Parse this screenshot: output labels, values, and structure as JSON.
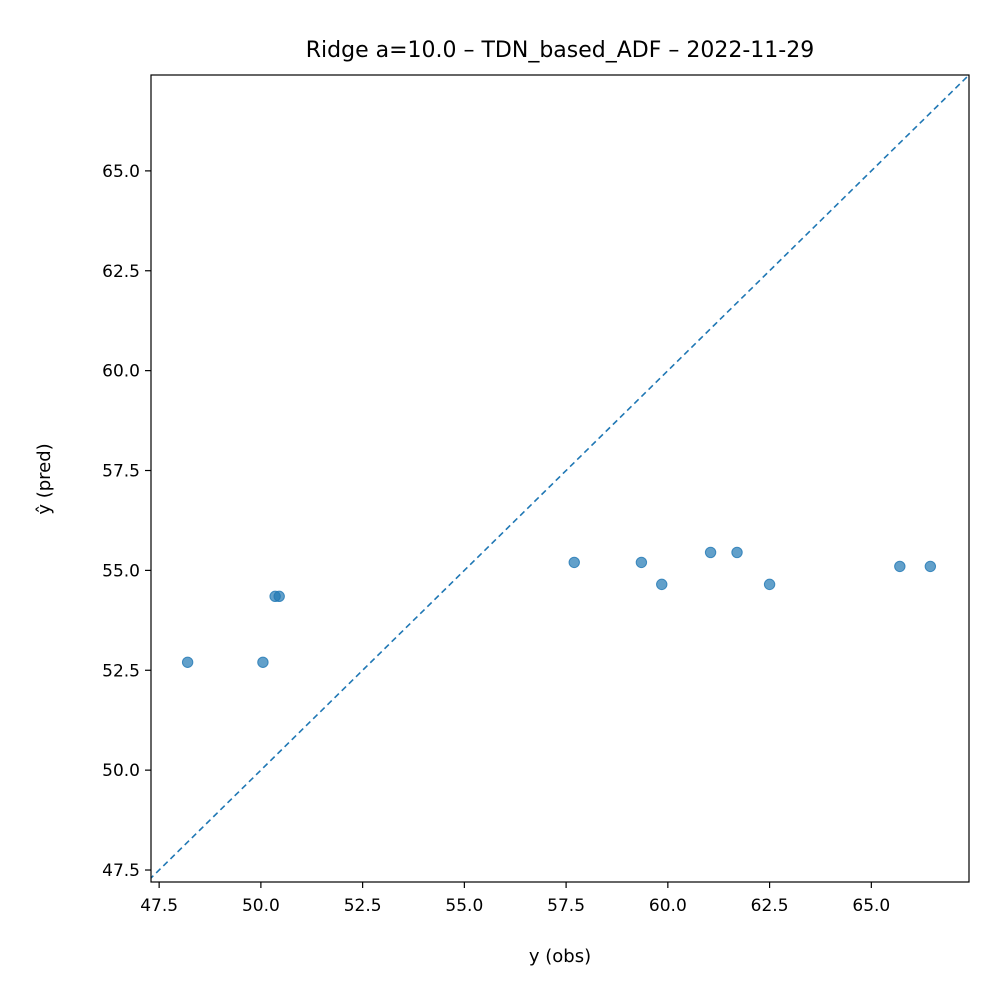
{
  "chart_data": {
    "type": "scatter",
    "title": "Ridge a=10.0 – TDN_based_ADF – 2022-11-29",
    "xlabel": "y (obs)",
    "ylabel": "ŷ (pred)",
    "xlim": [
      47.3,
      67.4
    ],
    "ylim": [
      47.2,
      67.4
    ],
    "xticks": [
      "47.5",
      "50.0",
      "52.5",
      "55.0",
      "57.5",
      "60.0",
      "62.5",
      "65.0"
    ],
    "yticks": [
      "47.5",
      "50.0",
      "52.5",
      "55.0",
      "57.5",
      "60.0",
      "62.5",
      "65.0"
    ],
    "grid": false,
    "legend": "none",
    "reference_line": "y = x (dashed)",
    "colors": {
      "points": "#1f77b4",
      "reference_line": "#1f77b4"
    },
    "points": [
      {
        "x": 48.2,
        "y": 52.7
      },
      {
        "x": 50.05,
        "y": 52.7
      },
      {
        "x": 50.35,
        "y": 54.35
      },
      {
        "x": 50.45,
        "y": 54.35
      },
      {
        "x": 57.7,
        "y": 55.2
      },
      {
        "x": 59.35,
        "y": 55.2
      },
      {
        "x": 59.85,
        "y": 54.65
      },
      {
        "x": 61.05,
        "y": 55.45
      },
      {
        "x": 61.7,
        "y": 55.45
      },
      {
        "x": 62.5,
        "y": 54.65
      },
      {
        "x": 65.7,
        "y": 55.1
      },
      {
        "x": 66.45,
        "y": 55.1
      }
    ]
  }
}
